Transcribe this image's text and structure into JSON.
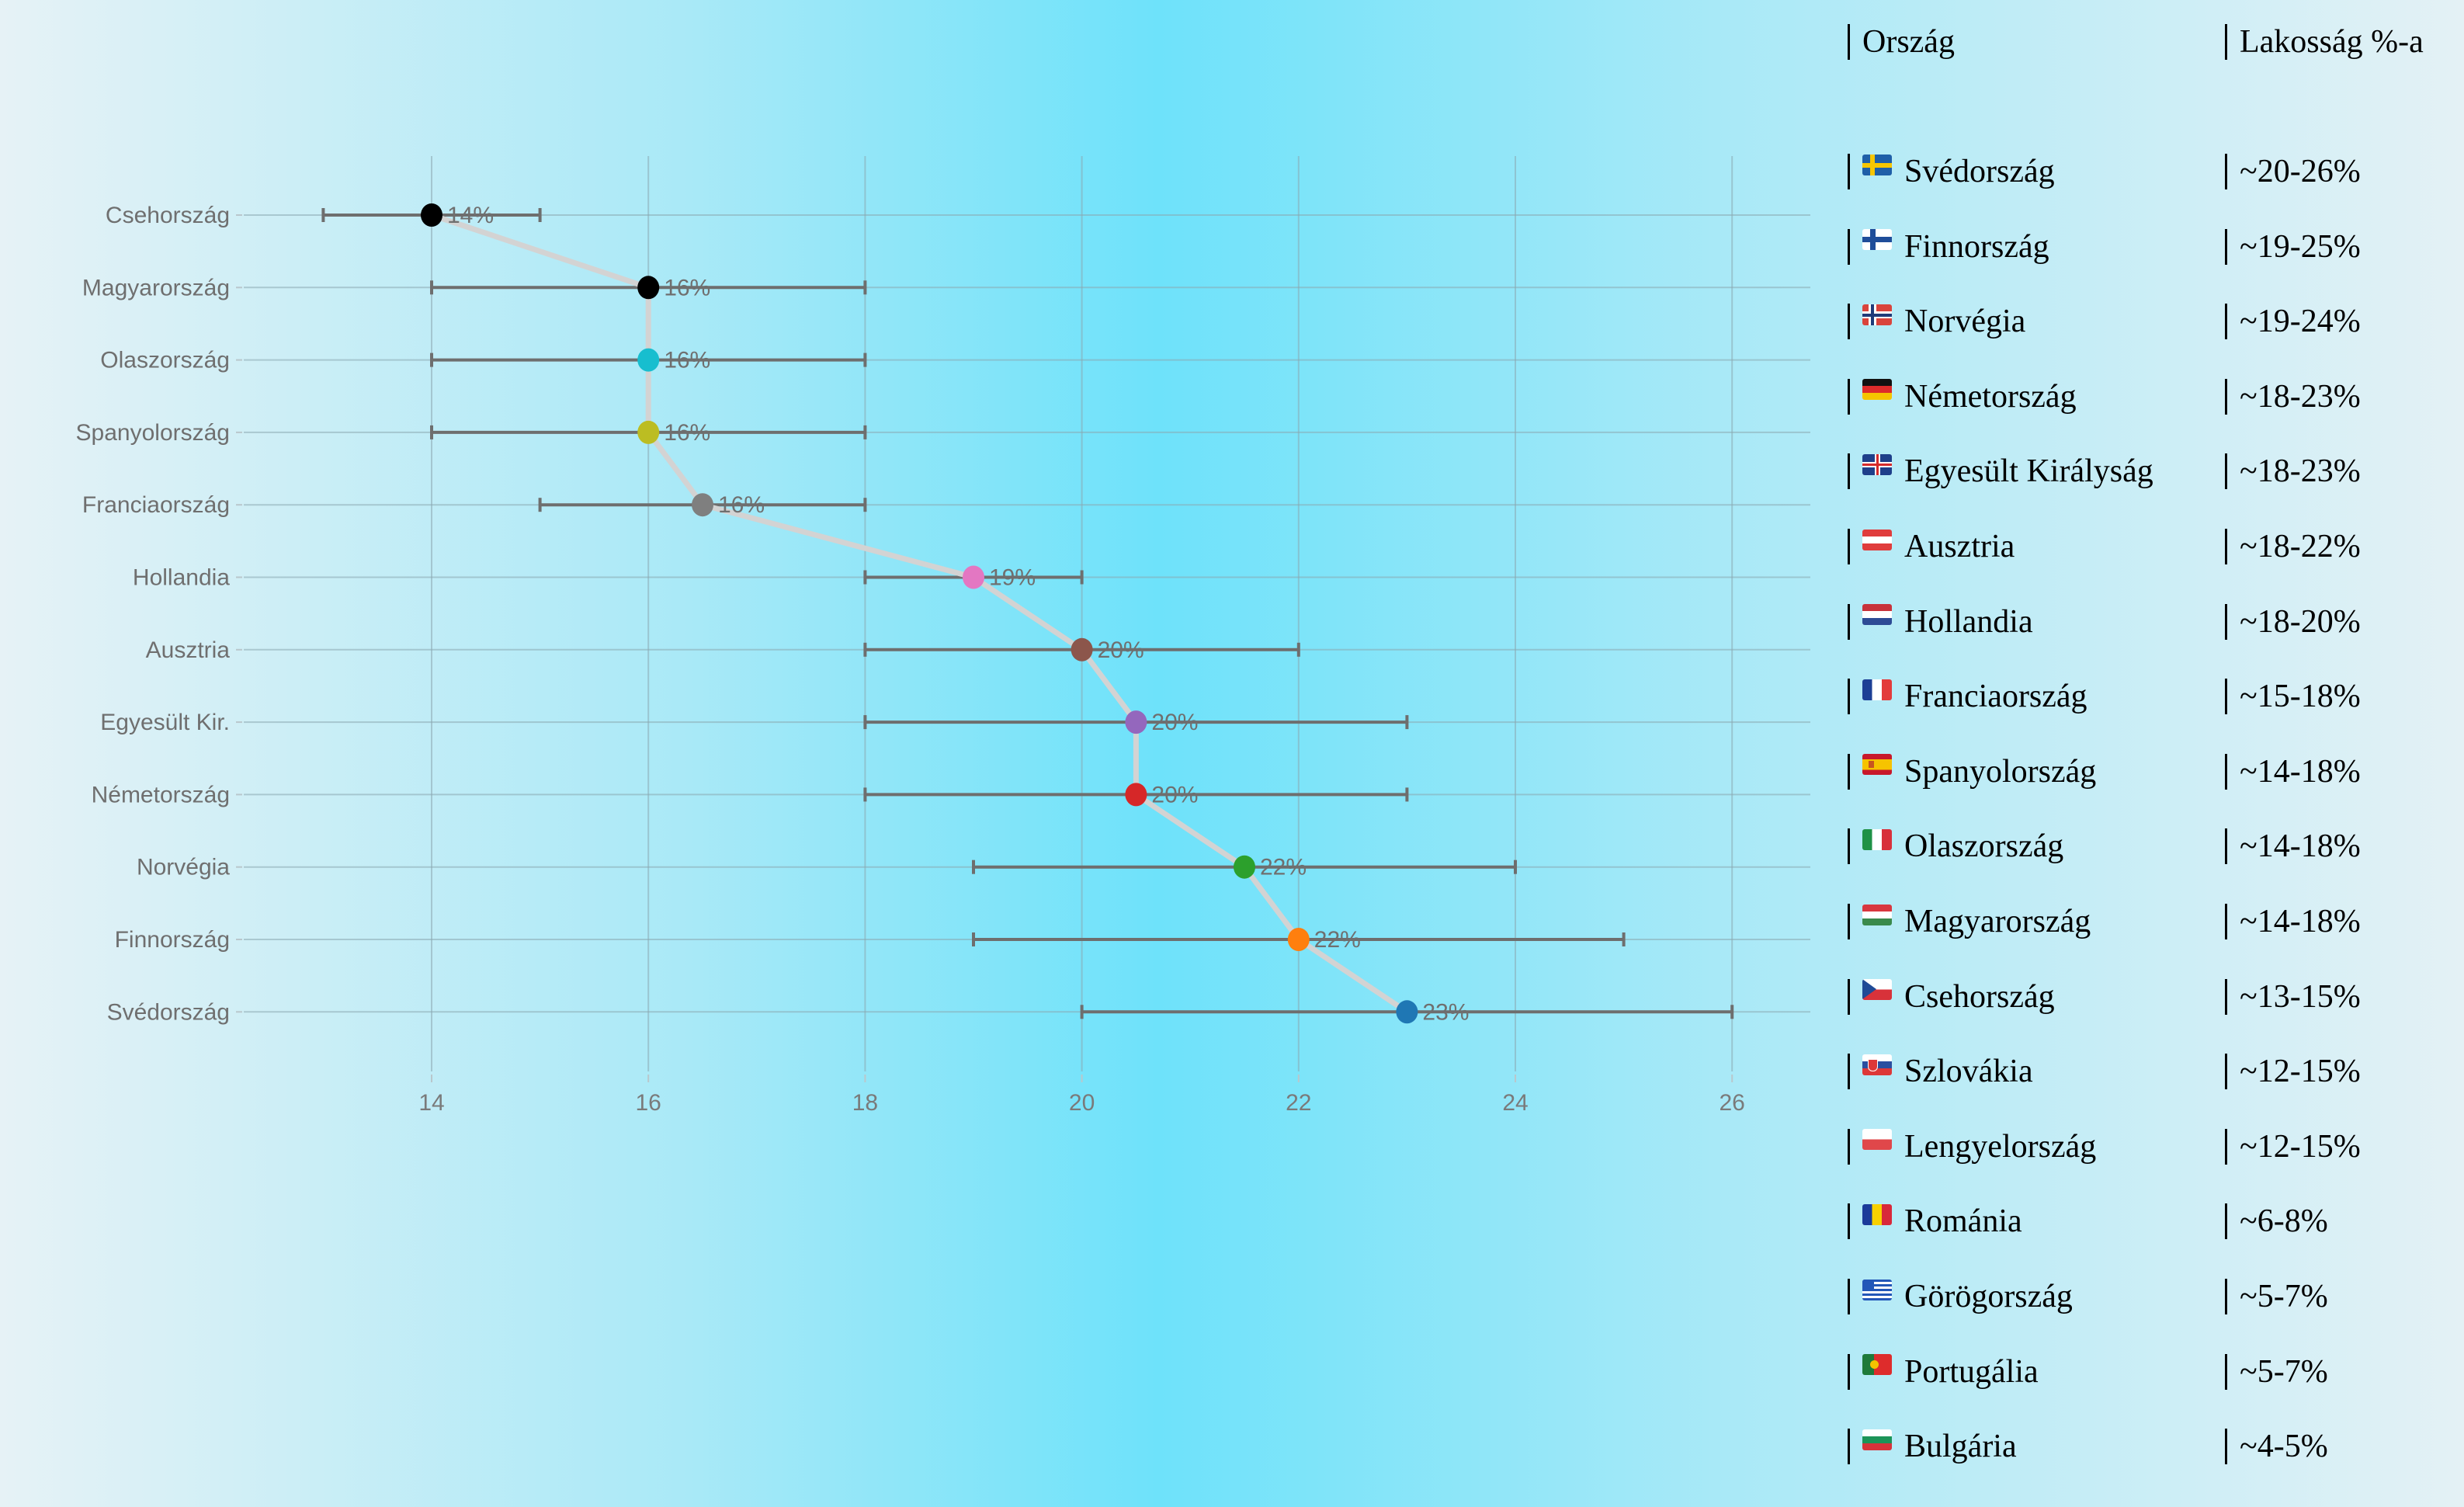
{
  "chart_data": {
    "type": "scatter",
    "subtype": "dot-plot-with-error-bars",
    "title": "",
    "xlabel": "",
    "ylabel": "",
    "xlim": [
      12.2,
      27.1
    ],
    "xticks": [
      14,
      16,
      18,
      20,
      22,
      24,
      26
    ],
    "grid": true,
    "connect_line_color": "#d3d3d3",
    "errorbar_color": "#6e6e6e",
    "categories": [
      "Csehország",
      "Magyarország",
      "Olaszország",
      "Spanyolország",
      "Franciaország",
      "Hollandia",
      "Ausztria",
      "Egyesült Kir.",
      "Németország",
      "Norvégia",
      "Finnország",
      "Svédország"
    ],
    "points": [
      {
        "label": "Csehország",
        "value": 14,
        "low": 13,
        "high": 15,
        "text": "14%",
        "color": "#000000"
      },
      {
        "label": "Magyarország",
        "value": 16,
        "low": 14,
        "high": 18,
        "text": "16%",
        "color": "#000000"
      },
      {
        "label": "Olaszország",
        "value": 16,
        "low": 14,
        "high": 18,
        "text": "16%",
        "color": "#17becf"
      },
      {
        "label": "Spanyolország",
        "value": 16,
        "low": 14,
        "high": 18,
        "text": "16%",
        "color": "#bcbd22"
      },
      {
        "label": "Franciaország",
        "value": 16.5,
        "low": 15,
        "high": 18,
        "text": "16%",
        "color": "#7f7f7f"
      },
      {
        "label": "Hollandia",
        "value": 19,
        "low": 18,
        "high": 20,
        "text": "19%",
        "color": "#e377c2"
      },
      {
        "label": "Ausztria",
        "value": 20,
        "low": 18,
        "high": 22,
        "text": "20%",
        "color": "#8c564b"
      },
      {
        "label": "Egyesült Kir.",
        "value": 20.5,
        "low": 18,
        "high": 23,
        "text": "20%",
        "color": "#9467bd"
      },
      {
        "label": "Németország",
        "value": 20.5,
        "low": 18,
        "high": 23,
        "text": "20%",
        "color": "#d62728"
      },
      {
        "label": "Norvégia",
        "value": 21.5,
        "low": 19,
        "high": 24,
        "text": "22%",
        "color": "#2ca02c"
      },
      {
        "label": "Finnország",
        "value": 22,
        "low": 19,
        "high": 25,
        "text": "22%",
        "color": "#ff7f0e"
      },
      {
        "label": "Svédország",
        "value": 23,
        "low": 20,
        "high": 26,
        "text": "23%",
        "color": "#1f77b4"
      }
    ]
  },
  "legend_table": {
    "header": {
      "country": "Ország",
      "share": "Lakosság %-a"
    },
    "rows": [
      {
        "flag": "flag-sweden",
        "country": "Svédország",
        "share": "~20-26%"
      },
      {
        "flag": "flag-finland",
        "country": "Finnország",
        "share": "~19-25%"
      },
      {
        "flag": "flag-norway",
        "country": "Norvégia",
        "share": "~19-24%"
      },
      {
        "flag": "flag-germany",
        "country": "Németország",
        "share": "~18-23%"
      },
      {
        "flag": "flag-united-kingdom",
        "country": "Egyesült Királyság",
        "share": "~18-23%"
      },
      {
        "flag": "flag-austria",
        "country": "Ausztria",
        "share": "~18-22%"
      },
      {
        "flag": "flag-netherlands",
        "country": "Hollandia",
        "share": "~18-20%"
      },
      {
        "flag": "flag-france",
        "country": "Franciaország",
        "share": "~15-18%"
      },
      {
        "flag": "flag-spain",
        "country": "Spanyolország",
        "share": "~14-18%"
      },
      {
        "flag": "flag-italy",
        "country": "Olaszország",
        "share": "~14-18%"
      },
      {
        "flag": "flag-hungary",
        "country": "Magyarország",
        "share": "~14-18%"
      },
      {
        "flag": "flag-czechia",
        "country": "Csehország",
        "share": "~13-15%"
      },
      {
        "flag": "flag-slovakia",
        "country": "Szlovákia",
        "share": "~12-15%"
      },
      {
        "flag": "flag-poland",
        "country": "Lengyelország",
        "share": "~12-15%"
      },
      {
        "flag": "flag-romania",
        "country": "Románia",
        "share": "~6-8%"
      },
      {
        "flag": "flag-greece",
        "country": "Görögország",
        "share": "~5-7%"
      },
      {
        "flag": "flag-portugal",
        "country": "Portugália",
        "share": "~5-7%"
      },
      {
        "flag": "flag-bulgaria",
        "country": "Bulgária",
        "share": "~4-5%"
      }
    ]
  }
}
